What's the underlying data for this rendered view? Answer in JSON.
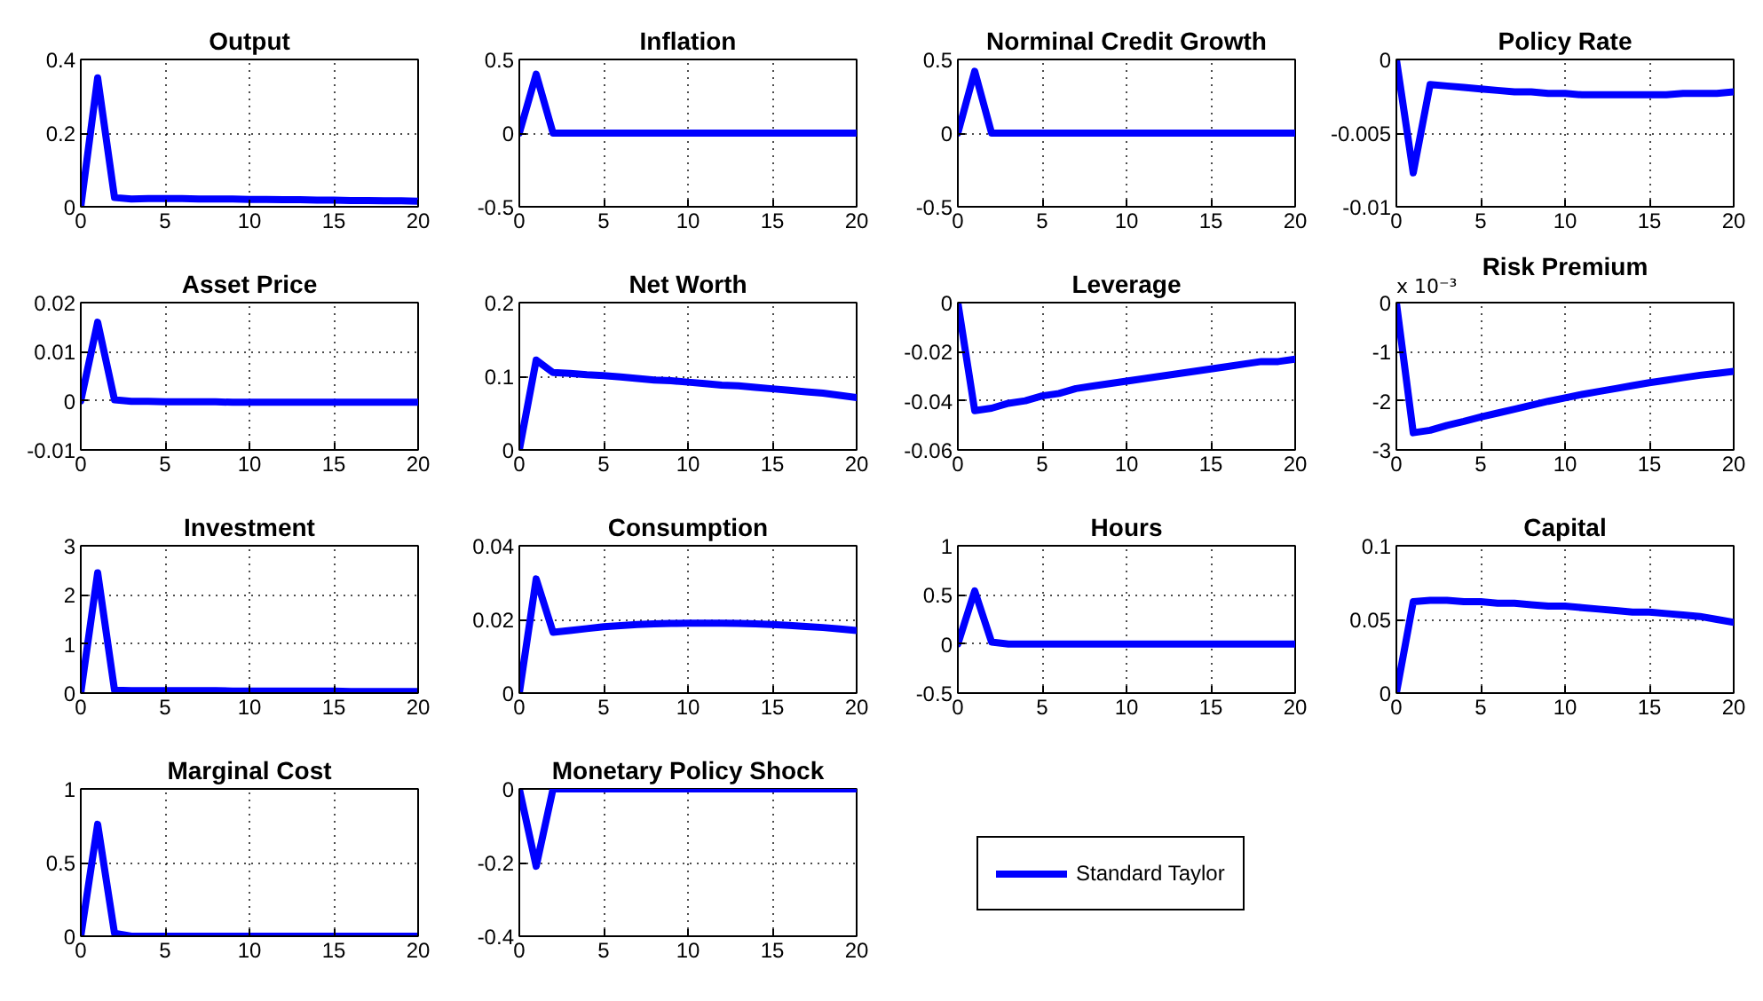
{
  "chart_data": [
    {
      "type": "line",
      "title": "Output",
      "x": [
        0,
        1,
        2,
        3,
        4,
        5,
        6,
        7,
        8,
        9,
        10,
        11,
        12,
        13,
        14,
        15,
        16,
        17,
        18,
        19,
        20
      ],
      "values": [
        0,
        0.35,
        0.025,
        0.021,
        0.022,
        0.022,
        0.022,
        0.021,
        0.021,
        0.021,
        0.02,
        0.02,
        0.019,
        0.019,
        0.018,
        0.018,
        0.017,
        0.017,
        0.016,
        0.016,
        0.015
      ],
      "color": "#0000ff",
      "xlim": [
        0,
        20
      ],
      "xticks": [
        0,
        5,
        10,
        15,
        20
      ],
      "ylim": [
        0,
        0.4
      ],
      "yticks": [
        0,
        0.2,
        0.4
      ],
      "grid": true
    },
    {
      "type": "line",
      "title": "Inflation",
      "x": [
        0,
        1,
        2,
        3,
        4,
        5,
        6,
        7,
        8,
        9,
        10,
        11,
        12,
        13,
        14,
        15,
        16,
        17,
        18,
        19,
        20
      ],
      "values": [
        0,
        0.4,
        0,
        0,
        0,
        0,
        0,
        0,
        0,
        0,
        0,
        0,
        0,
        0,
        0,
        0,
        0,
        0,
        0,
        0,
        0
      ],
      "color": "#0000ff",
      "xlim": [
        0,
        20
      ],
      "xticks": [
        0,
        5,
        10,
        15,
        20
      ],
      "ylim": [
        -0.5,
        0.5
      ],
      "yticks": [
        -0.5,
        0,
        0.5
      ],
      "grid": true
    },
    {
      "type": "line",
      "title": "Norminal Credit Growth",
      "x": [
        0,
        1,
        2,
        3,
        4,
        5,
        6,
        7,
        8,
        9,
        10,
        11,
        12,
        13,
        14,
        15,
        16,
        17,
        18,
        19,
        20
      ],
      "values": [
        0,
        0.42,
        0,
        0,
        0,
        0,
        0,
        0,
        0,
        0,
        0,
        0,
        0,
        0,
        0,
        0,
        0,
        0,
        0,
        0,
        0
      ],
      "color": "#0000ff",
      "xlim": [
        0,
        20
      ],
      "xticks": [
        0,
        5,
        10,
        15,
        20
      ],
      "ylim": [
        -0.5,
        0.5
      ],
      "yticks": [
        -0.5,
        0,
        0.5
      ],
      "grid": true
    },
    {
      "type": "line",
      "title": "Policy Rate",
      "x": [
        0,
        1,
        2,
        3,
        4,
        5,
        6,
        7,
        8,
        9,
        10,
        11,
        12,
        13,
        14,
        15,
        16,
        17,
        18,
        19,
        20
      ],
      "values": [
        0,
        -0.0077,
        -0.0017,
        -0.0018,
        -0.0019,
        -0.002,
        -0.0021,
        -0.0022,
        -0.0022,
        -0.0023,
        -0.0023,
        -0.0024,
        -0.0024,
        -0.0024,
        -0.0024,
        -0.0024,
        -0.0024,
        -0.0023,
        -0.0023,
        -0.0023,
        -0.0022
      ],
      "color": "#0000ff",
      "xlim": [
        0,
        20
      ],
      "xticks": [
        0,
        5,
        10,
        15,
        20
      ],
      "ylim": [
        -0.01,
        0
      ],
      "yticks": [
        -0.01,
        -0.005,
        0
      ],
      "grid": true
    },
    {
      "type": "line",
      "title": "Asset Price",
      "x": [
        0,
        1,
        2,
        3,
        4,
        5,
        6,
        7,
        8,
        9,
        10,
        11,
        12,
        13,
        14,
        15,
        16,
        17,
        18,
        19,
        20
      ],
      "values": [
        0,
        0.016,
        0.0002,
        -0.0001,
        -0.0001,
        -0.0002,
        -0.0002,
        -0.0002,
        -0.0002,
        -0.0003,
        -0.0003,
        -0.0003,
        -0.0003,
        -0.0003,
        -0.0003,
        -0.0003,
        -0.0003,
        -0.0003,
        -0.0003,
        -0.0003,
        -0.0003
      ],
      "color": "#0000ff",
      "xlim": [
        0,
        20
      ],
      "xticks": [
        0,
        5,
        10,
        15,
        20
      ],
      "ylim": [
        -0.01,
        0.02
      ],
      "yticks": [
        -0.01,
        0,
        0.01,
        0.02
      ],
      "grid": true
    },
    {
      "type": "line",
      "title": "Net Worth",
      "x": [
        0,
        1,
        2,
        3,
        4,
        5,
        6,
        7,
        8,
        9,
        10,
        11,
        12,
        13,
        14,
        15,
        16,
        17,
        18,
        19,
        20
      ],
      "values": [
        0,
        0.122,
        0.105,
        0.104,
        0.102,
        0.101,
        0.099,
        0.097,
        0.095,
        0.094,
        0.092,
        0.09,
        0.088,
        0.087,
        0.085,
        0.083,
        0.081,
        0.079,
        0.077,
        0.074,
        0.071
      ],
      "color": "#0000ff",
      "xlim": [
        0,
        20
      ],
      "xticks": [
        0,
        5,
        10,
        15,
        20
      ],
      "ylim": [
        0,
        0.2
      ],
      "yticks": [
        0,
        0.1,
        0.2
      ],
      "grid": true
    },
    {
      "type": "line",
      "title": "Leverage",
      "x": [
        0,
        1,
        2,
        3,
        4,
        5,
        6,
        7,
        8,
        9,
        10,
        11,
        12,
        13,
        14,
        15,
        16,
        17,
        18,
        19,
        20
      ],
      "values": [
        0,
        -0.044,
        -0.043,
        -0.041,
        -0.04,
        -0.038,
        -0.037,
        -0.035,
        -0.034,
        -0.033,
        -0.032,
        -0.031,
        -0.03,
        -0.029,
        -0.028,
        -0.027,
        -0.026,
        -0.025,
        -0.024,
        -0.024,
        -0.023
      ],
      "color": "#0000ff",
      "xlim": [
        0,
        20
      ],
      "xticks": [
        0,
        5,
        10,
        15,
        20
      ],
      "ylim": [
        -0.06,
        0
      ],
      "yticks": [
        -0.06,
        -0.04,
        -0.02,
        0
      ],
      "grid": true
    },
    {
      "type": "line",
      "title": "Risk Premium",
      "annotations": [
        "x 10⁻³"
      ],
      "x": [
        0,
        1,
        2,
        3,
        4,
        5,
        6,
        7,
        8,
        9,
        10,
        11,
        12,
        13,
        14,
        15,
        16,
        17,
        18,
        19,
        20
      ],
      "values": [
        0,
        -2.65,
        -2.6,
        -2.5,
        -2.42,
        -2.33,
        -2.25,
        -2.17,
        -2.09,
        -2.01,
        -1.94,
        -1.87,
        -1.81,
        -1.75,
        -1.69,
        -1.63,
        -1.58,
        -1.53,
        -1.48,
        -1.44,
        -1.4
      ],
      "color": "#0000ff",
      "xlim": [
        0,
        20
      ],
      "xticks": [
        0,
        5,
        10,
        15,
        20
      ],
      "ylim": [
        -3,
        0
      ],
      "yticks": [
        -3,
        -2,
        -1,
        0
      ],
      "grid": true
    },
    {
      "type": "line",
      "title": "Investment",
      "x": [
        0,
        1,
        2,
        3,
        4,
        5,
        6,
        7,
        8,
        9,
        10,
        11,
        12,
        13,
        14,
        15,
        16,
        17,
        18,
        19,
        20
      ],
      "values": [
        0,
        2.45,
        0.06,
        0.05,
        0.05,
        0.05,
        0.05,
        0.05,
        0.05,
        0.04,
        0.04,
        0.04,
        0.04,
        0.04,
        0.04,
        0.04,
        0.03,
        0.03,
        0.03,
        0.03,
        0.03
      ],
      "color": "#0000ff",
      "xlim": [
        0,
        20
      ],
      "xticks": [
        0,
        5,
        10,
        15,
        20
      ],
      "ylim": [
        0,
        3
      ],
      "yticks": [
        0,
        1,
        2,
        3
      ],
      "grid": true
    },
    {
      "type": "line",
      "title": "Consumption",
      "x": [
        0,
        1,
        2,
        3,
        4,
        5,
        6,
        7,
        8,
        9,
        10,
        11,
        12,
        13,
        14,
        15,
        16,
        17,
        18,
        19,
        20
      ],
      "values": [
        0,
        0.031,
        0.0165,
        0.017,
        0.0175,
        0.018,
        0.0183,
        0.0186,
        0.0188,
        0.0189,
        0.019,
        0.019,
        0.019,
        0.0189,
        0.0188,
        0.0186,
        0.0184,
        0.0181,
        0.0178,
        0.0174,
        0.017
      ],
      "color": "#0000ff",
      "xlim": [
        0,
        20
      ],
      "xticks": [
        0,
        5,
        10,
        15,
        20
      ],
      "ylim": [
        0,
        0.04
      ],
      "yticks": [
        0,
        0.02,
        0.04
      ],
      "grid": true
    },
    {
      "type": "line",
      "title": "Hours",
      "x": [
        0,
        1,
        2,
        3,
        4,
        5,
        6,
        7,
        8,
        9,
        10,
        11,
        12,
        13,
        14,
        15,
        16,
        17,
        18,
        19,
        20
      ],
      "values": [
        0,
        0.54,
        0.02,
        0,
        0,
        0,
        0,
        0,
        0,
        0,
        0,
        0,
        0,
        0,
        0,
        0,
        0,
        0,
        0,
        0,
        0
      ],
      "color": "#0000ff",
      "xlim": [
        0,
        20
      ],
      "xticks": [
        0,
        5,
        10,
        15,
        20
      ],
      "ylim": [
        -0.5,
        1
      ],
      "yticks": [
        -0.5,
        0,
        0.5,
        1
      ],
      "grid": true
    },
    {
      "type": "line",
      "title": "Capital",
      "x": [
        0,
        1,
        2,
        3,
        4,
        5,
        6,
        7,
        8,
        9,
        10,
        11,
        12,
        13,
        14,
        15,
        16,
        17,
        18,
        19,
        20
      ],
      "values": [
        0,
        0.062,
        0.063,
        0.063,
        0.062,
        0.062,
        0.061,
        0.061,
        0.06,
        0.059,
        0.059,
        0.058,
        0.057,
        0.056,
        0.055,
        0.055,
        0.054,
        0.053,
        0.052,
        0.05,
        0.048
      ],
      "color": "#0000ff",
      "xlim": [
        0,
        20
      ],
      "xticks": [
        0,
        5,
        10,
        15,
        20
      ],
      "ylim": [
        0,
        0.1
      ],
      "yticks": [
        0,
        0.05,
        0.1
      ],
      "grid": true
    },
    {
      "type": "line",
      "title": "Marginal Cost",
      "x": [
        0,
        1,
        2,
        3,
        4,
        5,
        6,
        7,
        8,
        9,
        10,
        11,
        12,
        13,
        14,
        15,
        16,
        17,
        18,
        19,
        20
      ],
      "values": [
        0,
        0.76,
        0.02,
        0,
        0,
        0,
        0,
        0,
        0,
        0,
        0,
        0,
        0,
        0,
        0,
        0,
        0,
        0,
        0,
        0,
        0
      ],
      "color": "#0000ff",
      "xlim": [
        0,
        20
      ],
      "xticks": [
        0,
        5,
        10,
        15,
        20
      ],
      "ylim": [
        0,
        1
      ],
      "yticks": [
        0,
        0.5,
        1
      ],
      "grid": true
    },
    {
      "type": "line",
      "title": "Monetary Policy Shock",
      "x": [
        0,
        1,
        2,
        3,
        4,
        5,
        6,
        7,
        8,
        9,
        10,
        11,
        12,
        13,
        14,
        15,
        16,
        17,
        18,
        19,
        20
      ],
      "series": [
        {
          "name": "Standard Taylor",
          "color": "#0000ff",
          "values": [
            0,
            -0.21,
            0,
            0,
            0,
            0,
            0,
            0,
            0,
            0,
            0,
            0,
            0,
            0,
            0,
            0,
            0,
            0,
            0,
            0,
            0
          ]
        }
      ],
      "xlim": [
        0,
        20
      ],
      "xticks": [
        0,
        5,
        10,
        15,
        20
      ],
      "ylim": [
        -0.4,
        0
      ],
      "yticks": [
        -0.4,
        -0.2,
        0
      ],
      "grid": true,
      "legend": "right"
    }
  ]
}
